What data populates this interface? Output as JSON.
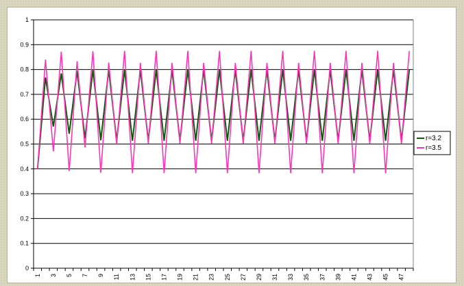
{
  "chart_data": {
    "type": "line",
    "title": "",
    "xlabel": "",
    "ylabel": "",
    "x": [
      1,
      2,
      3,
      4,
      5,
      6,
      7,
      8,
      9,
      10,
      11,
      12,
      13,
      14,
      15,
      16,
      17,
      18,
      19,
      20,
      21,
      22,
      23,
      24,
      25,
      26,
      27,
      28,
      29,
      30,
      31,
      32,
      33,
      34,
      35,
      36,
      37,
      38,
      39,
      40,
      41,
      42,
      43,
      44,
      45,
      46,
      47,
      48
    ],
    "x_tick_labels": [
      "1",
      "3",
      "5",
      "7",
      "9",
      "11",
      "13",
      "15",
      "17",
      "19",
      "21",
      "23",
      "25",
      "27",
      "29",
      "31",
      "33",
      "35",
      "37",
      "39",
      "41",
      "43",
      "45",
      "47"
    ],
    "ylim": [
      0,
      1
    ],
    "y_ticks": [
      "0",
      "0.1",
      "0.2",
      "0.3",
      "0.4",
      "0.5",
      "0.6",
      "0.7",
      "0.8",
      "0.9",
      "1"
    ],
    "grid": "horizontal",
    "legend_position": "right",
    "series": [
      {
        "name": "r=3.2",
        "color": "#0b5a0b",
        "values": [
          0.4,
          0.768,
          0.5702,
          0.7842,
          0.5415,
          0.7945,
          0.5225,
          0.7984,
          0.5151,
          0.7993,
          0.5134,
          0.7994,
          0.5131,
          0.7995,
          0.513,
          0.7995,
          0.513,
          0.7995,
          0.513,
          0.7995,
          0.513,
          0.7995,
          0.513,
          0.7995,
          0.513,
          0.7995,
          0.513,
          0.7995,
          0.513,
          0.7995,
          0.513,
          0.7995,
          0.513,
          0.7995,
          0.513,
          0.7995,
          0.513,
          0.7995,
          0.513,
          0.7995,
          0.513,
          0.7995,
          0.513,
          0.7995,
          0.513,
          0.7995,
          0.513,
          0.7995
        ]
      },
      {
        "name": "r=3.5",
        "color": "#ff33bb",
        "values": [
          0.4,
          0.84,
          0.4704,
          0.8719,
          0.3909,
          0.8333,
          0.4862,
          0.8743,
          0.3846,
          0.8284,
          0.4976,
          0.875,
          0.3828,
          0.8269,
          0.5009,
          0.875,
          0.3828,
          0.8269,
          0.5009,
          0.875,
          0.3828,
          0.8269,
          0.5009,
          0.875,
          0.3828,
          0.8269,
          0.5009,
          0.875,
          0.3828,
          0.8269,
          0.5009,
          0.875,
          0.3828,
          0.8269,
          0.5009,
          0.875,
          0.3828,
          0.8269,
          0.5009,
          0.875,
          0.3828,
          0.8269,
          0.5009,
          0.875,
          0.3828,
          0.8269,
          0.5009,
          0.875
        ]
      }
    ]
  }
}
